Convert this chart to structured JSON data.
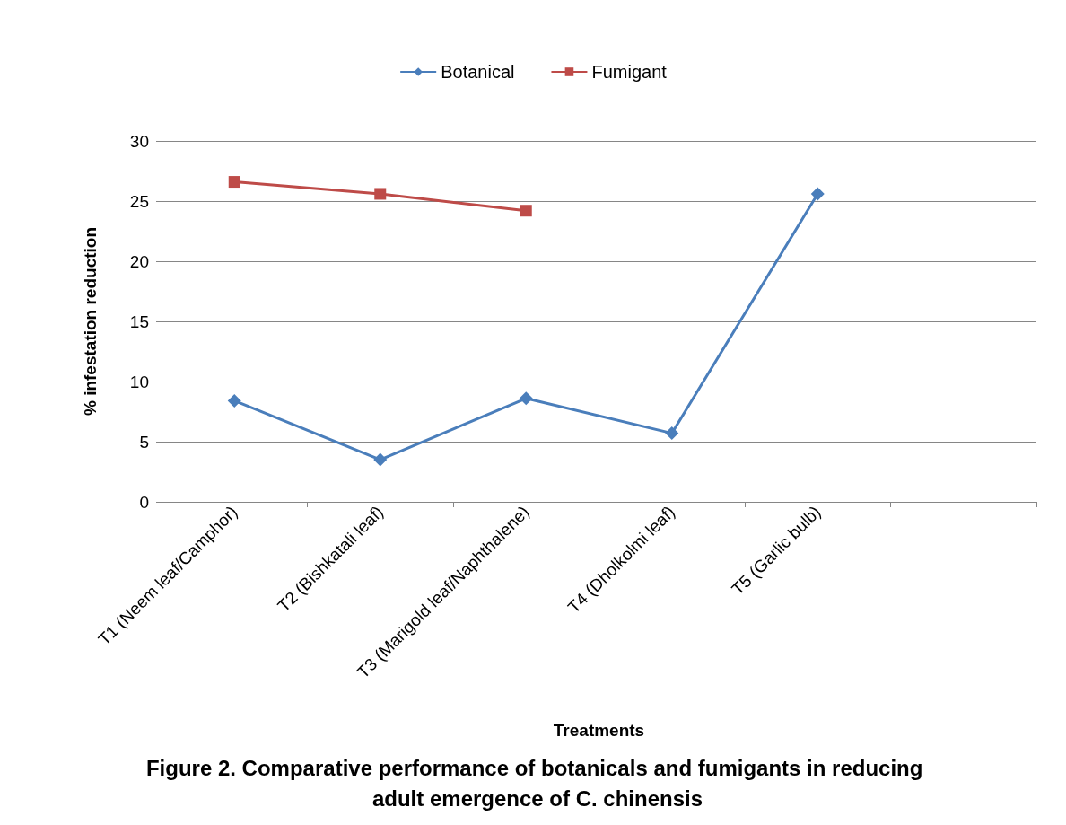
{
  "chart_data": {
    "type": "line",
    "title": "Figure 2. Comparative performance of botanicals and fumigants in reducing adult emergence of C. chinensis",
    "xlabel": "Treatments",
    "ylabel": "% infestation reduction",
    "categories": [
      "T1 (Neem leaf/Camphor)",
      "T2 (Bishkatali leaf)",
      "T3 (Marigold leaf/Naphthalene)",
      "T4 (Dholkolmi leaf)",
      "T5 (Garlic bulb)",
      null
    ],
    "series": [
      {
        "name": "Botanical",
        "color": "#4a7ebb",
        "marker": "diamond",
        "values": [
          8.4,
          3.5,
          8.6,
          5.7,
          25.6,
          null
        ]
      },
      {
        "name": "Fumigant",
        "color": "#be4b48",
        "marker": "square",
        "values": [
          26.6,
          25.6,
          24.2,
          null,
          null,
          null
        ]
      }
    ],
    "ylim": [
      0,
      30
    ],
    "yticks": [
      0,
      5,
      10,
      15,
      20,
      25,
      30
    ],
    "grid": "y",
    "legend": "top",
    "line_style": "solid"
  }
}
